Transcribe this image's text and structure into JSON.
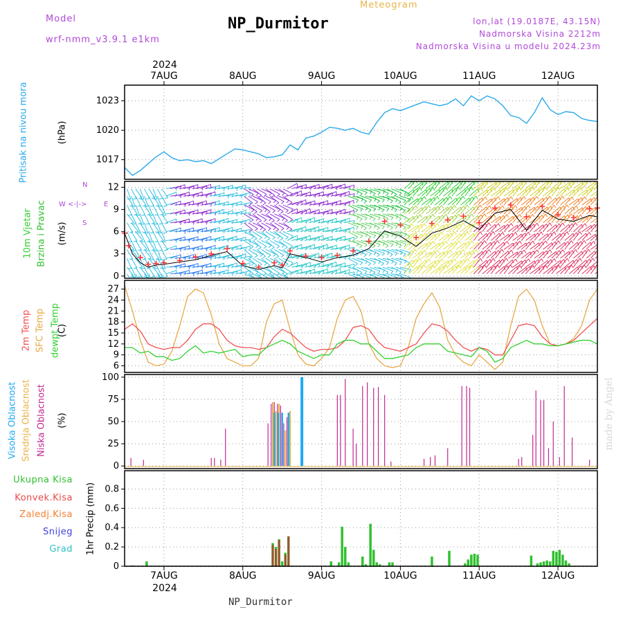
{
  "header": {
    "model_label": "Model",
    "model_name": "wrf-nmm_v3.9.1 e1km",
    "title": "NP_Durmitor",
    "meteogram_label": "Meteogram",
    "coords": "lon,lat (19.0187E, 43.15N)",
    "altitude": "Nadmorska Visina 2212m",
    "model_altitude": "Nadmorska Visina u modelu 2024.23m"
  },
  "footer": {
    "station": "NP_Durmitor",
    "watermark": "made by Angel"
  },
  "colors": {
    "pressure": "#2aa8e8",
    "wind_speed": "#000000",
    "gust": "#ff3030",
    "t2m": "#f05050",
    "sfc": "#e8a848",
    "dewpt": "#30d030",
    "high_cloud": "#20a8f0",
    "mid_cloud": "#e8b448",
    "low_cloud": "#c02890",
    "total": "#30c030",
    "convective": "#e84848",
    "frozen": "#f08030",
    "snow": "#4040e0",
    "hail": "#30c0c0"
  },
  "chart_data": [
    {
      "type": "line",
      "panel": "pressure",
      "ylabel_1": "Pritisak na nivou mora",
      "ylabel_2": "(hPa)",
      "top_year": "2024",
      "top_days": [
        "7AUG",
        "8AUG",
        "9AUG",
        "10AUG",
        "11AUG",
        "12AUG"
      ],
      "yticks": [
        "1023",
        "1020",
        "1017"
      ],
      "ylim": [
        1015.0,
        1024.6
      ],
      "series": [
        {
          "x": [
            6.5,
            6.6,
            6.7,
            6.8,
            6.9,
            7.0,
            7.1,
            7.2,
            7.3,
            7.4,
            7.5,
            7.6,
            7.7,
            7.8,
            7.9,
            8.0,
            8.1,
            8.2,
            8.3,
            8.4,
            8.5,
            8.6,
            8.7,
            8.8,
            8.9,
            9.0,
            9.1,
            9.2,
            9.3,
            9.4,
            9.5,
            9.6,
            9.7,
            9.8,
            9.9,
            10.0,
            10.1,
            10.2,
            10.3,
            10.4,
            10.5,
            10.6,
            10.7,
            10.8,
            10.9,
            11.0,
            11.1,
            11.2,
            11.3,
            11.4,
            11.5,
            11.6,
            11.7,
            11.8,
            11.9,
            12.0,
            12.1,
            12.2,
            12.3,
            12.4,
            12.5
          ],
          "values": [
            1016.2,
            1015.4,
            1015.9,
            1016.6,
            1017.3,
            1017.8,
            1017.2,
            1016.9,
            1017.0,
            1016.8,
            1016.9,
            1016.6,
            1017.1,
            1017.6,
            1018.1,
            1018.0,
            1017.8,
            1017.6,
            1017.2,
            1017.3,
            1017.5,
            1018.5,
            1018.0,
            1019.2,
            1019.4,
            1019.8,
            1020.3,
            1020.2,
            1020.0,
            1020.2,
            1019.8,
            1019.6,
            1020.8,
            1021.8,
            1022.2,
            1022.0,
            1022.3,
            1022.6,
            1022.9,
            1022.7,
            1022.5,
            1022.7,
            1023.2,
            1022.5,
            1023.5,
            1023.0,
            1023.5,
            1023.2,
            1022.5,
            1021.5,
            1021.3,
            1020.7,
            1021.8,
            1023.3,
            1022.1,
            1021.6,
            1021.9,
            1021.8,
            1021.2,
            1021.0,
            1020.9
          ]
        }
      ]
    },
    {
      "type": "line",
      "panel": "wind",
      "ylabel_1": "10m Vjetar",
      "ylabel_2": "Brzina i Pravac",
      "ylabel_3": "(m/s)",
      "compass_n": "N",
      "compass_s": "S",
      "compass_e": "E",
      "compass_w": "W",
      "yticks": [
        "12",
        "9",
        "6",
        "3",
        "0"
      ],
      "ylim": [
        -0.3,
        12.8
      ],
      "series": [
        {
          "x": [
            6.5,
            6.6,
            6.7,
            6.8,
            6.9,
            7.0,
            7.2,
            7.4,
            7.6,
            7.8,
            8.0,
            8.2,
            8.4,
            8.5,
            8.6,
            8.8,
            9.0,
            9.2,
            9.4,
            9.6,
            9.8,
            10.0,
            10.2,
            10.4,
            10.6,
            10.8,
            11.0,
            11.2,
            11.4,
            11.6,
            11.8,
            12.0,
            12.2,
            12.4,
            12.5
          ],
          "values": [
            5.8,
            3.0,
            1.8,
            1.2,
            1.5,
            1.6,
            1.9,
            2.2,
            2.8,
            3.3,
            1.4,
            0.9,
            1.4,
            1.1,
            3.0,
            2.5,
            1.9,
            2.5,
            2.8,
            3.7,
            6.1,
            5.4,
            4.0,
            5.8,
            6.5,
            7.5,
            6.3,
            8.5,
            9.0,
            6.2,
            8.9,
            7.7,
            7.4,
            8.2,
            8.0
          ]
        },
        {
          "x": [
            6.5,
            6.55,
            6.7,
            6.8,
            6.9,
            7.0,
            7.2,
            7.4,
            7.6,
            7.8,
            8.0,
            8.2,
            8.4,
            8.5,
            8.6,
            8.8,
            9.0,
            9.2,
            9.4,
            9.6,
            9.8,
            10.0,
            10.2,
            10.4,
            10.6,
            10.8,
            11.0,
            11.2,
            11.4,
            11.6,
            11.8,
            12.0,
            12.2,
            12.4,
            12.5
          ],
          "values": [
            5.8,
            4.1,
            2.5,
            1.6,
            1.7,
            1.8,
            2.1,
            2.6,
            3.0,
            3.7,
            1.7,
            1.2,
            1.8,
            1.5,
            3.4,
            2.7,
            2.5,
            2.8,
            3.4,
            4.7,
            7.4,
            6.9,
            5.2,
            7.1,
            7.6,
            8.1,
            7.2,
            9.2,
            9.6,
            8.0,
            9.4,
            8.3,
            7.9,
            9.1,
            9.2
          ]
        }
      ]
    },
    {
      "type": "line",
      "panel": "temperature",
      "ylabel_1": "2m Temp",
      "ylabel_2": "SFC Temp",
      "ylabel_3": "dewpt Temp",
      "ylabel_4": "(C)",
      "yticks": [
        "27",
        "24",
        "21",
        "18",
        "15",
        "12",
        "9",
        "6"
      ],
      "ylim": [
        4.2,
        29.4
      ],
      "series": [
        {
          "name": "2m Temp",
          "x": [
            6.5,
            6.6,
            6.7,
            6.8,
            6.9,
            7.0,
            7.1,
            7.2,
            7.3,
            7.4,
            7.5,
            7.6,
            7.7,
            7.8,
            7.9,
            8.0,
            8.1,
            8.2,
            8.3,
            8.4,
            8.5,
            8.6,
            8.7,
            8.8,
            8.9,
            9.0,
            9.1,
            9.2,
            9.3,
            9.4,
            9.5,
            9.6,
            9.7,
            9.8,
            9.9,
            10.0,
            10.1,
            10.2,
            10.3,
            10.4,
            10.5,
            10.6,
            10.7,
            10.8,
            10.9,
            11.0,
            11.1,
            11.2,
            11.3,
            11.4,
            11.5,
            11.6,
            11.7,
            11.8,
            11.9,
            12.0,
            12.1,
            12.2,
            12.3,
            12.4,
            12.5
          ],
          "values": [
            16,
            17.5,
            15.5,
            12,
            11,
            10.5,
            11,
            11,
            13,
            16,
            17.5,
            17.5,
            16,
            13,
            11.5,
            11,
            11,
            10.5,
            11,
            14,
            16,
            15,
            13,
            11,
            10,
            10.5,
            10.5,
            11,
            13,
            16.5,
            17,
            16,
            13,
            11,
            10.5,
            10,
            11,
            12,
            15,
            17.5,
            17,
            15.5,
            13,
            11,
            10,
            11,
            10.5,
            9,
            9,
            13,
            17,
            17.5,
            17,
            14,
            12,
            11.5,
            12,
            13,
            15,
            17,
            19
          ]
        },
        {
          "name": "SFC Temp",
          "x": [
            6.5,
            6.6,
            6.7,
            6.8,
            6.9,
            7.0,
            7.1,
            7.2,
            7.3,
            7.4,
            7.5,
            7.6,
            7.7,
            7.8,
            7.9,
            8.0,
            8.1,
            8.2,
            8.3,
            8.4,
            8.5,
            8.6,
            8.7,
            8.8,
            8.9,
            9.0,
            9.1,
            9.2,
            9.3,
            9.4,
            9.5,
            9.6,
            9.7,
            9.8,
            9.9,
            10.0,
            10.1,
            10.2,
            10.3,
            10.4,
            10.5,
            10.6,
            10.7,
            10.8,
            10.9,
            11.0,
            11.1,
            11.2,
            11.3,
            11.4,
            11.5,
            11.6,
            11.7,
            11.8,
            11.9,
            12.0,
            12.1,
            12.2,
            12.3,
            12.4,
            12.5
          ],
          "values": [
            28,
            21,
            13,
            7,
            6,
            6.5,
            10,
            17,
            25,
            27,
            26,
            20,
            12,
            8,
            7,
            6,
            6,
            8,
            18,
            23,
            24,
            16,
            9,
            6.5,
            6,
            8,
            11,
            19,
            24,
            25,
            21,
            12,
            8,
            6,
            5.5,
            6,
            11,
            19,
            23,
            26,
            22,
            13,
            9,
            7,
            6,
            9,
            7,
            5,
            7,
            17,
            25,
            27,
            24,
            17,
            12,
            11.5,
            12,
            13.5,
            17,
            24,
            27
          ]
        },
        {
          "name": "dewpt Temp",
          "x": [
            6.5,
            6.6,
            6.7,
            6.8,
            6.9,
            7.0,
            7.1,
            7.2,
            7.3,
            7.4,
            7.5,
            7.6,
            7.7,
            7.8,
            7.9,
            8.0,
            8.1,
            8.2,
            8.3,
            8.4,
            8.5,
            8.6,
            8.7,
            8.8,
            8.9,
            9.0,
            9.1,
            9.2,
            9.3,
            9.4,
            9.5,
            9.6,
            9.7,
            9.8,
            9.9,
            10.0,
            10.1,
            10.2,
            10.3,
            10.4,
            10.5,
            10.6,
            10.7,
            10.8,
            10.9,
            11.0,
            11.1,
            11.2,
            11.3,
            11.4,
            11.5,
            11.6,
            11.7,
            11.8,
            11.9,
            12.0,
            12.1,
            12.2,
            12.3,
            12.4,
            12.5
          ],
          "values": [
            11,
            11,
            9.5,
            10,
            8.5,
            8.5,
            7.5,
            8,
            10,
            11.5,
            9.5,
            10,
            9.5,
            10,
            10.5,
            8.5,
            9,
            9,
            11,
            12,
            13,
            12,
            10,
            9,
            8,
            9,
            9,
            12,
            13,
            13,
            12,
            12,
            10,
            8,
            8,
            8.5,
            9,
            11,
            12,
            12,
            12,
            10,
            9.5,
            9,
            8.5,
            11,
            10,
            7,
            8,
            11,
            12,
            13,
            12,
            12,
            11.5,
            11.5,
            12,
            12.5,
            13,
            13,
            12
          ]
        }
      ]
    },
    {
      "type": "bar",
      "panel": "clouds",
      "ylabel_1": "Visoka Oblacnost",
      "ylabel_2": "Srednja Oblacnost",
      "ylabel_3": "Niska Oblacnost",
      "ylabel_4": "(%)",
      "yticks": [
        "100",
        "75",
        "50",
        "25",
        "0"
      ],
      "ylim": [
        -3,
        103
      ],
      "series": [
        {
          "name": "Niska Oblacnost",
          "x": [
            6.58,
            6.74,
            7.6,
            7.64,
            7.72,
            7.78,
            8.32,
            8.36,
            8.4,
            8.44,
            8.48,
            8.52,
            8.56,
            8.6,
            8.74,
            9.2,
            9.24,
            9.3,
            9.4,
            9.44,
            9.52,
            9.58,
            9.66,
            9.72,
            9.8,
            9.88,
            10.3,
            10.38,
            10.44,
            10.6,
            10.78,
            10.84,
            10.88,
            11.5,
            11.54,
            11.68,
            11.72,
            11.78,
            11.82,
            11.88,
            11.94,
            12.02,
            12.08,
            12.18,
            12.4
          ],
          "values": [
            9,
            7,
            9,
            9,
            7,
            42,
            48,
            70,
            72,
            70,
            68,
            48,
            55,
            58,
            9,
            80,
            80,
            98,
            42,
            25,
            90,
            94,
            88,
            89,
            80,
            5,
            8,
            10,
            12,
            20,
            90,
            90,
            88,
            8,
            10,
            35,
            85,
            74,
            74,
            20,
            50,
            10,
            90,
            32,
            7
          ]
        },
        {
          "name": "Srednja Oblacnost",
          "x": [
            8.38,
            8.42,
            8.46,
            8.54,
            8.6
          ],
          "values": [
            72,
            62,
            70,
            40,
            62
          ]
        },
        {
          "name": "Visoka Oblacnost",
          "x": [
            8.4,
            8.45,
            8.5,
            8.58,
            8.75
          ],
          "values": [
            60,
            60,
            60,
            60,
            100
          ]
        }
      ]
    },
    {
      "type": "bar",
      "panel": "precip",
      "ylabel_1": "1hr Precip (mm)",
      "legend": [
        "Ukupna Kisa",
        "Konvek.Kisa",
        "Zaledj.Kisa",
        "Snijeg",
        "Grad"
      ],
      "bottom_days": [
        "7AUG",
        "8AUG",
        "9AUG",
        "10AUG",
        "11AUG",
        "12AUG"
      ],
      "bottom_year": "2024",
      "yticks": [
        "0.8",
        "0.6",
        "0.4",
        "0.2",
        "0"
      ],
      "ylim": [
        0,
        0.99
      ],
      "series": [
        {
          "name": "Ukupna Kisa",
          "x": [
            6.78,
            8.38,
            8.42,
            8.46,
            8.5,
            8.54,
            8.58,
            9.12,
            9.22,
            9.26,
            9.3,
            9.34,
            9.52,
            9.56,
            9.62,
            9.66,
            9.7,
            9.74,
            9.86,
            9.9,
            10.4,
            10.62,
            10.82,
            10.86,
            10.9,
            10.94,
            10.98,
            11.66,
            11.74,
            11.78,
            11.82,
            11.86,
            11.9,
            11.94,
            11.98,
            12.02,
            12.06,
            12.1,
            12.14
          ],
          "values": [
            0.05,
            0.24,
            0.2,
            0.28,
            0.05,
            0.14,
            0.31,
            0.05,
            0.04,
            0.41,
            0.2,
            0.04,
            0.1,
            0.02,
            0.44,
            0.17,
            0.04,
            0.02,
            0.04,
            0.04,
            0.1,
            0.16,
            0.03,
            0.07,
            0.12,
            0.13,
            0.12,
            0.11,
            0.03,
            0.04,
            0.05,
            0.06,
            0.05,
            0.16,
            0.15,
            0.17,
            0.12,
            0.06,
            0.03
          ]
        },
        {
          "name": "Konvek.Kisa",
          "x": [
            8.38,
            8.42,
            8.46,
            8.54,
            8.58
          ],
          "values": [
            0.22,
            0.18,
            0.27,
            0.12,
            0.31
          ]
        },
        {
          "name": "Zaledj.Kisa",
          "x": [
            6.6,
            8.45
          ],
          "values": [
            0.01,
            0.01
          ]
        }
      ]
    }
  ]
}
